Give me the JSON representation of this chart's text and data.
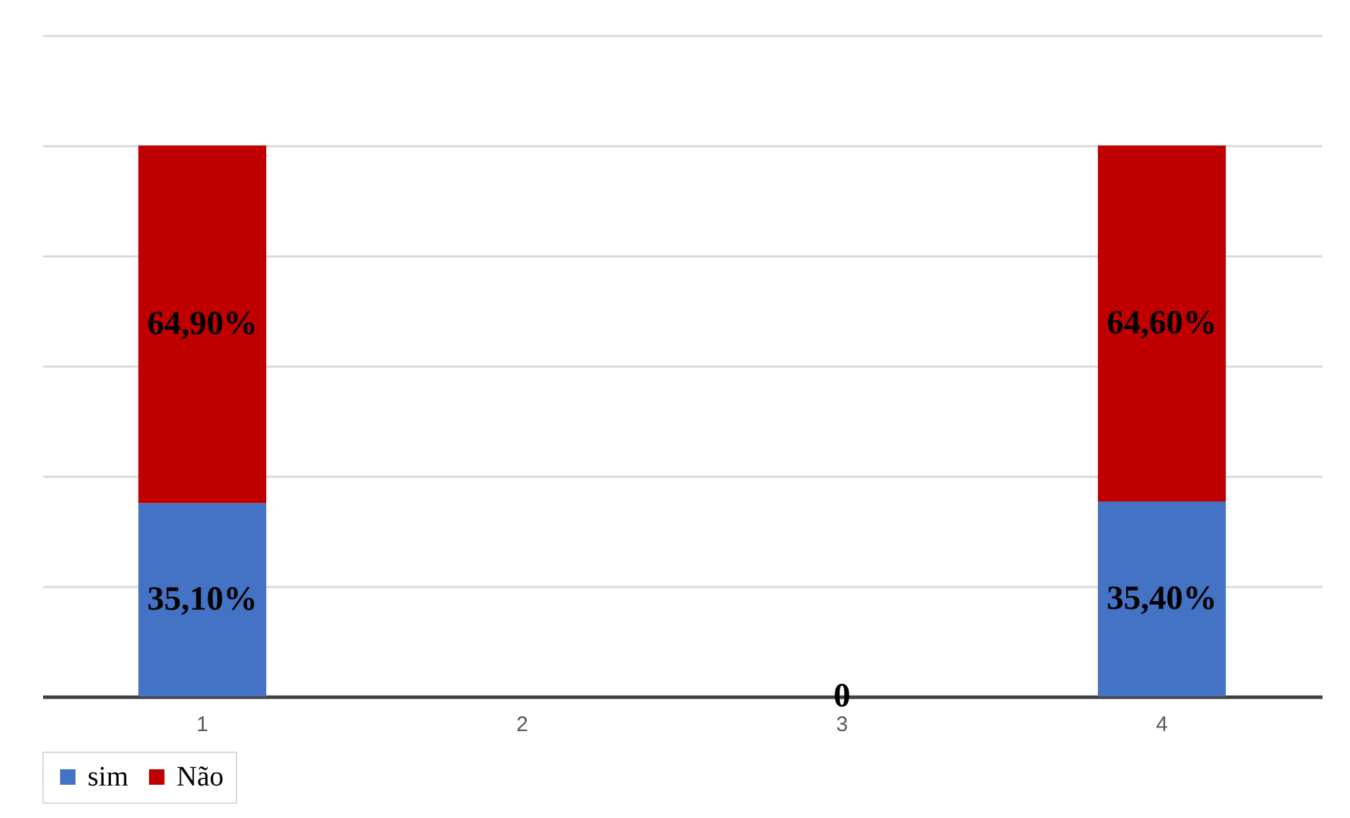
{
  "chart_data": {
    "type": "bar",
    "stacked": true,
    "categories": [
      "1",
      "2",
      "3",
      "4"
    ],
    "series": [
      {
        "name": "sim",
        "color": "#4472c4",
        "values": [
          35.1,
          null,
          0,
          35.4
        ],
        "value_labels": [
          "35,10%",
          null,
          "0",
          "35,40%"
        ]
      },
      {
        "name": "Não",
        "color": "#c00000",
        "values": [
          64.9,
          null,
          null,
          64.6
        ],
        "value_labels": [
          "64,90%",
          null,
          null,
          "64,60%"
        ]
      }
    ],
    "ylim": [
      0,
      120
    ],
    "yticks": [
      {
        "value": 0,
        "label": null
      },
      {
        "value": 20,
        "label": null
      },
      {
        "value": 40,
        "label": null
      },
      {
        "value": 60,
        "label": null
      },
      {
        "value": 80,
        "label": null
      },
      {
        "value": 100,
        "label": null
      },
      {
        "value": 120,
        "label": null
      }
    ],
    "tick_labels": "x",
    "grid": "y",
    "legend": "bottom"
  }
}
